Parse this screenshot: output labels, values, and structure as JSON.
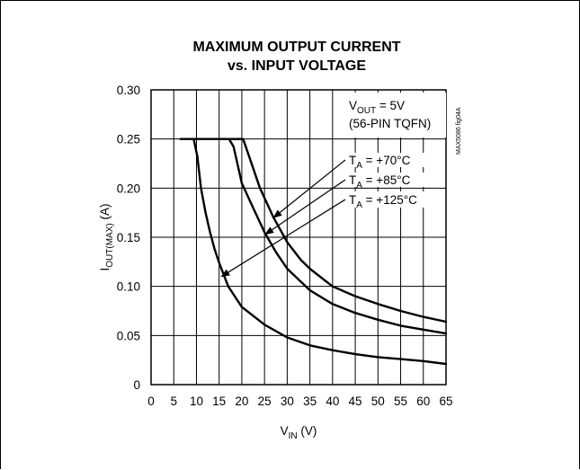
{
  "chart_data": {
    "type": "line",
    "title_line1": "MAXIMUM OUTPUT CURRENT",
    "title_line2": "vs. INPUT VOLTAGE",
    "xlabel": {
      "main": "V",
      "sub": "IN",
      "unit": " (V)"
    },
    "ylabel": {
      "main": "I",
      "sub": "OUT(MAX)",
      "unit": " (A)"
    },
    "xlim": [
      0,
      65
    ],
    "ylim": [
      0,
      0.3
    ],
    "xticks": [
      0,
      5,
      10,
      15,
      20,
      25,
      30,
      35,
      40,
      45,
      50,
      55,
      60,
      65
    ],
    "xtick_labels": [
      "0",
      "5",
      "10",
      "15",
      "20",
      "25",
      "30",
      "35",
      "40",
      "45",
      "50",
      "55",
      "60",
      "65"
    ],
    "yticks": [
      0,
      0.05,
      0.1,
      0.15,
      0.2,
      0.25,
      0.3
    ],
    "ytick_labels": [
      "0",
      "0.05",
      "0.10",
      "0.15",
      "0.20",
      "0.25",
      "0.30"
    ],
    "grid": true,
    "annotations": {
      "vout": {
        "main": "V",
        "sub": "OUT",
        "rest": " = 5V"
      },
      "package": "(56-PIN TQFN)",
      "fig_id": "MAX5086 fig04A",
      "ta_70": {
        "main": "T",
        "sub": "A",
        "rest": " = +70°C"
      },
      "ta_85": {
        "main": "T",
        "sub": "A",
        "rest": " = +85°C"
      },
      "ta_125": {
        "main": "T",
        "sub": "A",
        "rest": " = +125°C"
      }
    },
    "series": [
      {
        "name": "TA = +70°C",
        "x": [
          6.5,
          20.3,
          24,
          27,
          30,
          33,
          35,
          40,
          45,
          50,
          55,
          60,
          65
        ],
        "y": [
          0.25,
          0.25,
          0.2,
          0.17,
          0.145,
          0.127,
          0.118,
          0.1,
          0.09,
          0.082,
          0.075,
          0.069,
          0.064
        ]
      },
      {
        "name": "TA = +85°C",
        "x": [
          17.2,
          18.2,
          20,
          22.5,
          25,
          27.5,
          30,
          35,
          40,
          45,
          50,
          55,
          60,
          65
        ],
        "y": [
          0.25,
          0.242,
          0.205,
          0.18,
          0.155,
          0.135,
          0.118,
          0.096,
          0.082,
          0.073,
          0.066,
          0.06,
          0.056,
          0.052
        ]
      },
      {
        "name": "TA = +125°C",
        "x": [
          9.4,
          10.2,
          11,
          12,
          13,
          14,
          15,
          17,
          20,
          25,
          30,
          35,
          40,
          45,
          50,
          55,
          60,
          65
        ],
        "y": [
          0.25,
          0.232,
          0.2,
          0.175,
          0.155,
          0.138,
          0.124,
          0.1,
          0.079,
          0.061,
          0.048,
          0.04,
          0.035,
          0.031,
          0.028,
          0.026,
          0.024,
          0.021
        ]
      }
    ],
    "arrows": [
      {
        "target_series": "TA = +70°C",
        "target": [
          27,
          0.17
        ]
      },
      {
        "target_series": "TA = +85°C",
        "target": [
          25.2,
          0.153
        ]
      },
      {
        "target_series": "TA = +125°C",
        "target": [
          15.5,
          0.11
        ]
      }
    ]
  }
}
